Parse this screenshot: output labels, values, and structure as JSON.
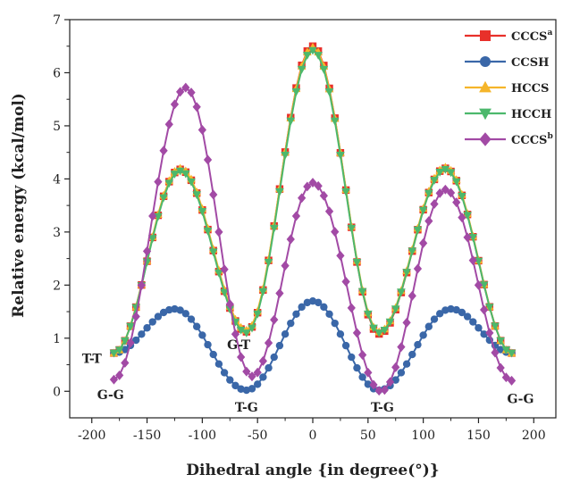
{
  "chart_data": {
    "type": "line",
    "xlabel": "Dihedral angle {in degree(°)}",
    "ylabel": "Relative energy (kcal/mol)",
    "xlim": [
      -220,
      220
    ],
    "ylim": [
      -0.5,
      7
    ],
    "xticks": [
      -200,
      -150,
      -100,
      -50,
      0,
      50,
      100,
      150,
      200
    ],
    "yticks": [
      0,
      1,
      2,
      3,
      4,
      5,
      6,
      7
    ],
    "legend_position": "top-right",
    "series": [
      {
        "name": "CCCS",
        "name_sup": "a",
        "color": "#e8302a",
        "marker": "square",
        "anchors": [
          [
            -180,
            0.72
          ],
          [
            -120,
            4.18
          ],
          [
            -60,
            1.12
          ],
          [
            0,
            6.5
          ],
          [
            60,
            1.08
          ],
          [
            120,
            4.2
          ],
          [
            180,
            0.72
          ]
        ]
      },
      {
        "name": "CCSH",
        "name_sup": "",
        "color": "#3a67a8",
        "marker": "circle",
        "anchors": [
          [
            -180,
            0.72
          ],
          [
            -125,
            1.55
          ],
          [
            -60,
            0.02
          ],
          [
            0,
            1.7
          ],
          [
            60,
            0.02
          ],
          [
            125,
            1.55
          ],
          [
            180,
            0.72
          ]
        ]
      },
      {
        "name": "HCCS",
        "name_sup": "",
        "color": "#f5b52a",
        "marker": "triangle-up",
        "anchors": [
          [
            -180,
            0.72
          ],
          [
            -120,
            4.2
          ],
          [
            -60,
            1.15
          ],
          [
            0,
            6.48
          ],
          [
            60,
            1.12
          ],
          [
            120,
            4.22
          ],
          [
            180,
            0.72
          ]
        ]
      },
      {
        "name": "HCCH",
        "name_sup": "",
        "color": "#4cb86c",
        "marker": "triangle-down",
        "anchors": [
          [
            -180,
            0.72
          ],
          [
            -120,
            4.15
          ],
          [
            -60,
            1.1
          ],
          [
            0,
            6.42
          ],
          [
            60,
            1.1
          ],
          [
            120,
            4.18
          ],
          [
            180,
            0.72
          ]
        ]
      },
      {
        "name": "CCCS",
        "name_sup": "b",
        "color": "#a24aa5",
        "marker": "diamond",
        "anchors": [
          [
            -180,
            0.22
          ],
          [
            -115,
            5.72
          ],
          [
            -55,
            0.28
          ],
          [
            0,
            3.93
          ],
          [
            62,
            0.0
          ],
          [
            120,
            3.8
          ],
          [
            180,
            0.2
          ]
        ]
      }
    ],
    "annotations": [
      {
        "text": "T-T",
        "x": -200,
        "y": 0.62
      },
      {
        "text": "G-G",
        "x": -183,
        "y": -0.06
      },
      {
        "text": "G-T",
        "x": -67,
        "y": 0.88
      },
      {
        "text": "T-G",
        "x": -60,
        "y": -0.3
      },
      {
        "text": "T-G",
        "x": 63,
        "y": -0.3
      },
      {
        "text": "G-G",
        "x": 188,
        "y": -0.14
      }
    ]
  }
}
